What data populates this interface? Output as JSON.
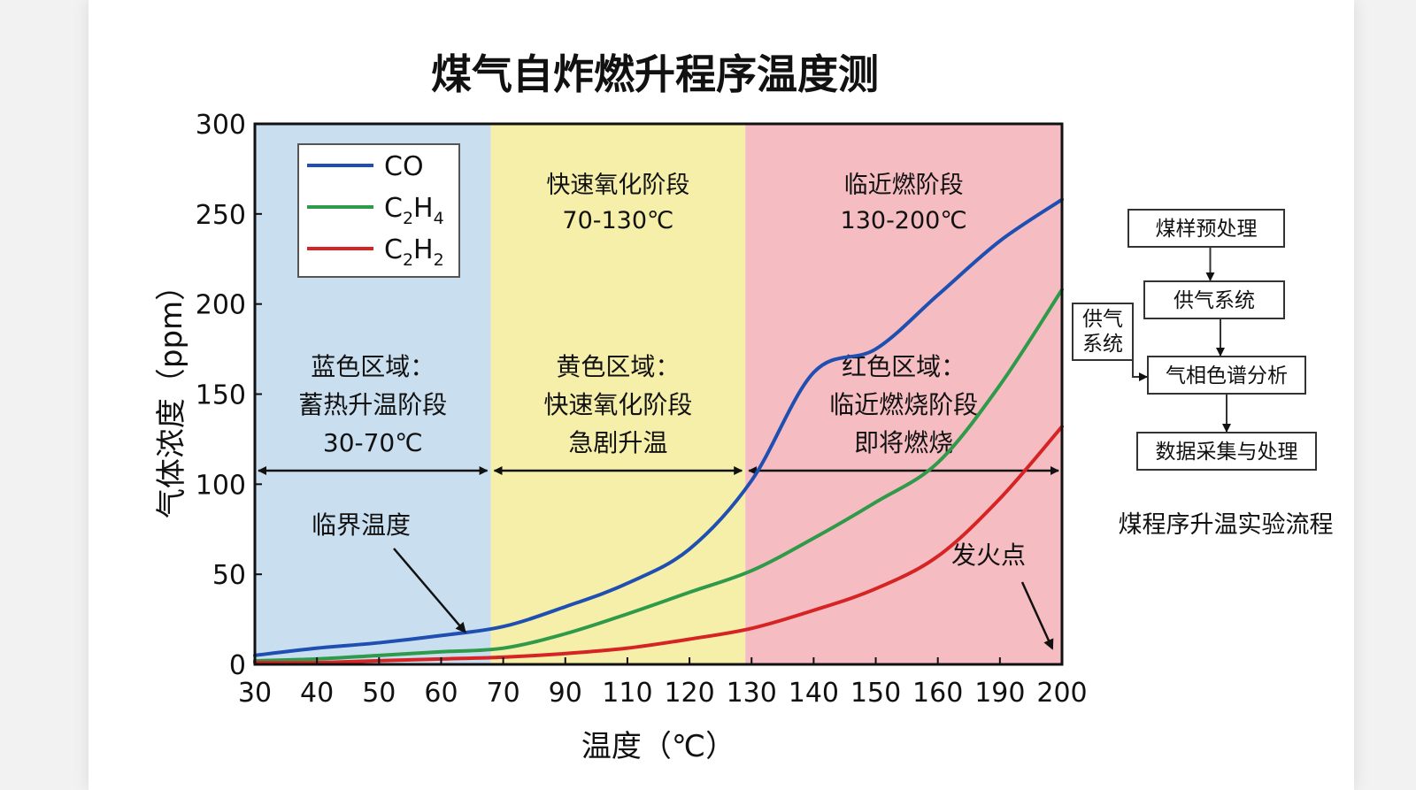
{
  "chart_data": {
    "type": "line",
    "title": "煤气自炸燃升程序温度测",
    "xlabel": "温度（℃）",
    "ylabel": "气体浓度（ppm）",
    "x_ticks": [
      "30",
      "40",
      "50",
      "60",
      "70",
      "90",
      "110",
      "120",
      "130",
      "140",
      "150",
      "160",
      "190",
      "200"
    ],
    "y_ticks": [
      "0",
      "50",
      "100",
      "150",
      "200",
      "250",
      "300"
    ],
    "ylim": [
      0,
      300
    ],
    "grid": false,
    "legend_position": "top-left",
    "legend": [
      {
        "key": "co",
        "main": "CO",
        "sub1": "",
        "mid": "",
        "sub2": "",
        "color": "#1f4fb0"
      },
      {
        "key": "c2h4",
        "main": "C",
        "sub1": "2",
        "mid": "H",
        "sub2": "4",
        "color": "#2e9a4a"
      },
      {
        "key": "c2h2",
        "main": "C",
        "sub1": "2",
        "mid": "H",
        "sub2": "2",
        "color": "#d62424"
      }
    ],
    "series": [
      {
        "name": "CO",
        "color": "#1f4fb0",
        "values": [
          5,
          9,
          12,
          16,
          21,
          32,
          45,
          64,
          102,
          162,
          175,
          205,
          235,
          258
        ]
      },
      {
        "name": "C2H4",
        "color": "#2e9a4a",
        "values": [
          2,
          3,
          5,
          7,
          9,
          17,
          28,
          40,
          52,
          70,
          90,
          112,
          155,
          208
        ]
      },
      {
        "name": "C2H2",
        "color": "#d62424",
        "values": [
          1,
          1,
          2,
          3,
          4,
          6,
          9,
          14,
          20,
          30,
          42,
          60,
          92,
          132
        ]
      }
    ],
    "zones": [
      {
        "key": "blue",
        "color": "#c9dff0",
        "x_start": 0,
        "x_end": 3.8,
        "title": [],
        "desc": [
          "蓝色区域：",
          "蓄热升温阶段",
          "30-70℃"
        ]
      },
      {
        "key": "yellow",
        "color": "#f6efa9",
        "x_start": 3.8,
        "x_end": 7.9,
        "title": [
          "快速氧化阶段",
          "70-130℃"
        ],
        "desc": [
          "黄色区域：",
          "快速氧化阶段",
          "急剧升温"
        ]
      },
      {
        "key": "red",
        "color": "#f5bcc2",
        "x_start": 7.9,
        "x_end": 13,
        "title": [
          "临近燃阶段",
          "130-200℃"
        ],
        "desc": [
          "红色区域：",
          "临近燃烧阶段",
          "即将燃烧"
        ]
      }
    ],
    "annotations": [
      {
        "key": "critical",
        "text": "临界温度",
        "target_x": 3.5,
        "target_y": 17
      },
      {
        "key": "ignition",
        "text": "发火点",
        "target_x": 12.9,
        "target_y": 3
      }
    ]
  },
  "flowchart": {
    "steps": [
      "煤样预处理",
      "供气系统",
      "气相色谱分析",
      "数据采集与处理"
    ],
    "side_box": [
      "供气",
      "系统"
    ],
    "caption": "煤程序升温实验流程"
  }
}
